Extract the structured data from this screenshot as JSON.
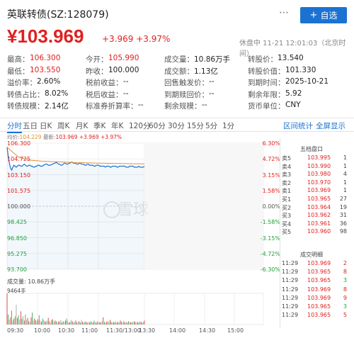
{
  "header": {
    "title": "英联转债(SZ:128079)",
    "more_icon": "⋯",
    "add_button": {
      "plus": "+",
      "label": "自选"
    }
  },
  "quote": {
    "price": "¥103.969",
    "change": "+3.969",
    "change_pct": "+3.97%",
    "status": "休盘中 11-21 12:01:03（北京时间）"
  },
  "info": [
    [
      {
        "label": "最高：",
        "value": "106.300",
        "red": true
      },
      {
        "label": "今开：",
        "value": "105.990",
        "red": true
      },
      {
        "label": "成交量：",
        "value": "10.86万手"
      },
      {
        "label": "转股价：",
        "value": "13.540"
      }
    ],
    [
      {
        "label": "最低：",
        "value": "103.550",
        "red": true
      },
      {
        "label": "昨收：",
        "value": "100.000"
      },
      {
        "label": "成交额：",
        "value": "1.13亿"
      },
      {
        "label": "转股价值：",
        "value": "101.330"
      }
    ],
    [
      {
        "label": "溢价率：",
        "value": "2.60%"
      },
      {
        "label": "税前收益：",
        "value": "--"
      },
      {
        "label": "回售触发价：",
        "value": "--"
      },
      {
        "label": "到期时间：",
        "value": "2025-10-21"
      }
    ],
    [
      {
        "label": "转债占比：",
        "value": "8.02%"
      },
      {
        "label": "税后收益：",
        "value": "--"
      },
      {
        "label": "到期赎回价：",
        "value": "--"
      },
      {
        "label": "剩余年限：",
        "value": "5.92"
      }
    ],
    [
      {
        "label": "转债规模：",
        "value": "2.14亿"
      },
      {
        "label": "标准券折算率：",
        "value": "--"
      },
      {
        "label": "剩余规模：",
        "value": "--"
      },
      {
        "label": "货币单位：",
        "value": "CNY"
      }
    ]
  ],
  "tabs": [
    "分时",
    "五日",
    "日K",
    "周K",
    "月K",
    "季K",
    "年K",
    "120分",
    "60分",
    "30分",
    "15分",
    "5分",
    "1分"
  ],
  "tab_links": [
    "区间统计",
    "全屏显示"
  ],
  "chart_meta": {
    "prefix": "均价:",
    "avg": "104.229",
    "latest_label": "最新:",
    "latest": "103.969 +3.969 +3.97%"
  },
  "colors": {
    "red": "#e02020",
    "green": "#1fa03a",
    "blue": "#1b72d2",
    "avg_line": "#e09030"
  },
  "watermark": "雪球",
  "chart_data": {
    "type": "line",
    "title": "",
    "y_left_ticks": [
      "106.300",
      "104.725",
      "103.150",
      "101.575",
      "100.000",
      "98.425",
      "96.850",
      "95.275",
      "93.700"
    ],
    "y_right_ticks": [
      "6.30%",
      "4.72%",
      "3.15%",
      "1.58%",
      "0.00%",
      "-1.58%",
      "-3.15%",
      "-4.72%",
      "-6.30%"
    ],
    "x_ticks": [
      "09:30",
      "10:00",
      "10:30",
      "11:00",
      "11:30/13:00",
      "13:30",
      "14:00",
      "14:30",
      "15:00"
    ],
    "ylim": [
      93.7,
      106.3
    ],
    "series": [
      {
        "name": "",
        "x": [
          0,
          1,
          2,
          3,
          4,
          5,
          6,
          7,
          8,
          9,
          10,
          11,
          12,
          13,
          14,
          15,
          16,
          17,
          18,
          19,
          20,
          21,
          22,
          23,
          24,
          25,
          26,
          27,
          28,
          29,
          30,
          31,
          32,
          33,
          34,
          35,
          36,
          37,
          38,
          39,
          40,
          41,
          42,
          43,
          44,
          45,
          46,
          47,
          48,
          49,
          50,
          51,
          52,
          53,
          54,
          55,
          56,
          57,
          58,
          59,
          60,
          61,
          62,
          63,
          64,
          65,
          66,
          67,
          68,
          69,
          70,
          71,
          72,
          73,
          74,
          75,
          76,
          77,
          78,
          79,
          80,
          81,
          82,
          83,
          84,
          85,
          86,
          87,
          88,
          89,
          90,
          91,
          92,
          93,
          94,
          95,
          96,
          97,
          98,
          99,
          100,
          101,
          102,
          103,
          104,
          105,
          106,
          107,
          108,
          109,
          110,
          111,
          112,
          113,
          114,
          115,
          116,
          117,
          118,
          119,
          120
        ],
        "y": [
          105.9,
          105.0,
          104.3,
          103.8,
          103.6,
          103.9,
          104.1,
          104.0,
          103.9,
          104.0,
          104.1,
          104.1,
          104.0,
          104.0,
          104.1,
          104.2,
          104.1,
          104.0,
          104.0,
          104.1,
          104.1,
          104.0,
          104.0,
          103.9,
          103.9,
          104.0,
          104.0,
          104.1,
          104.1,
          104.0,
          104.0,
          104.0,
          104.1,
          104.2,
          104.2,
          104.2,
          104.1,
          104.1,
          104.1,
          104.2,
          104.2,
          104.3,
          104.3,
          104.4,
          104.3,
          104.2,
          104.2,
          104.1,
          104.1,
          104.2,
          104.3,
          104.3,
          104.2,
          104.2,
          104.3,
          104.3,
          104.4,
          104.4,
          104.3,
          104.3,
          104.3,
          104.2,
          104.2,
          104.3,
          104.3,
          104.2,
          104.2,
          104.2,
          104.1,
          104.1,
          104.2,
          104.2,
          104.1,
          104.1,
          104.1,
          104.1,
          104.0,
          104.0,
          104.1,
          104.1,
          104.1,
          104.0,
          104.0,
          104.0,
          104.0,
          104.0,
          103.9,
          104.0,
          104.0,
          104.0,
          103.9,
          103.9,
          104.0,
          104.0,
          104.0,
          104.0,
          103.9,
          103.9,
          104.0,
          104.0,
          104.0,
          104.0,
          104.0,
          104.0,
          103.9,
          103.9,
          103.9,
          104.0,
          104.0,
          104.0,
          104.0,
          103.9,
          103.9,
          103.9,
          103.9,
          104.0,
          103.9,
          103.9,
          103.9,
          103.9,
          103.969
        ]
      },
      {
        "name": "",
        "x": [
          0,
          10,
          20,
          30,
          40,
          50,
          60,
          70,
          80,
          90,
          100,
          110,
          120
        ],
        "y": [
          105.9,
          104.9,
          104.6,
          104.5,
          104.45,
          104.4,
          104.35,
          104.33,
          104.3,
          104.28,
          104.26,
          104.24,
          104.229
        ]
      }
    ],
    "volume_label": "成交量: 10.86万手",
    "volume_max": "9464手",
    "volume": [
      94,
      30,
      15,
      22,
      42,
      12,
      18,
      25,
      60,
      20,
      28,
      15,
      40,
      18,
      26,
      12,
      30,
      14,
      20,
      10,
      8,
      22,
      36,
      12,
      18,
      14,
      10,
      16,
      28,
      12,
      8,
      18,
      14,
      10,
      8,
      12,
      20,
      10,
      6,
      14,
      16,
      8,
      12,
      10,
      6,
      10,
      8,
      14,
      6,
      10,
      8,
      12,
      18,
      10,
      6,
      8,
      14,
      10,
      6,
      8,
      12,
      6,
      8,
      10,
      6,
      14,
      8,
      6,
      10,
      8,
      6,
      8,
      6,
      10,
      8,
      6,
      12,
      8,
      6,
      10,
      6,
      8,
      6,
      10,
      22,
      8,
      6,
      8,
      10,
      6,
      14,
      8,
      6,
      8,
      6,
      10,
      6,
      8,
      6,
      12,
      8,
      6,
      10,
      6,
      8,
      6,
      10,
      8,
      6,
      8,
      6,
      10,
      8,
      6,
      8,
      6,
      10,
      8,
      6,
      8,
      12
    ]
  },
  "orderbook": {
    "title": "五档盘口",
    "rows": [
      {
        "label": "卖5",
        "price": "103.995",
        "qty": "1"
      },
      {
        "label": "卖4",
        "price": "103.990",
        "qty": "1"
      },
      {
        "label": "卖3",
        "price": "103.980",
        "qty": "4"
      },
      {
        "label": "卖2",
        "price": "103.970",
        "qty": "1"
      },
      {
        "label": "卖1",
        "price": "103.969",
        "qty": "1"
      },
      {
        "label": "买1",
        "price": "103.965",
        "qty": "27"
      },
      {
        "label": "买2",
        "price": "103.964",
        "qty": "19"
      },
      {
        "label": "买3",
        "price": "103.962",
        "qty": "31"
      },
      {
        "label": "买4",
        "price": "103.961",
        "qty": "36"
      },
      {
        "label": "买5",
        "price": "103.960",
        "qty": "98"
      }
    ],
    "trades_title": "成交明细",
    "trades": [
      {
        "time": "11:29",
        "price": "103.969",
        "qty": "2"
      },
      {
        "time": "11:29",
        "price": "103.965",
        "qty": "8"
      },
      {
        "time": "11:29",
        "price": "103.965",
        "qty": "3"
      },
      {
        "time": "11:29",
        "price": "103.969",
        "qty": "8"
      },
      {
        "time": "11:29",
        "price": "103.969",
        "qty": "9"
      },
      {
        "time": "11:29",
        "price": "103.965",
        "qty": "3"
      },
      {
        "time": "11:29",
        "price": "103.965",
        "qty": "5"
      }
    ]
  }
}
